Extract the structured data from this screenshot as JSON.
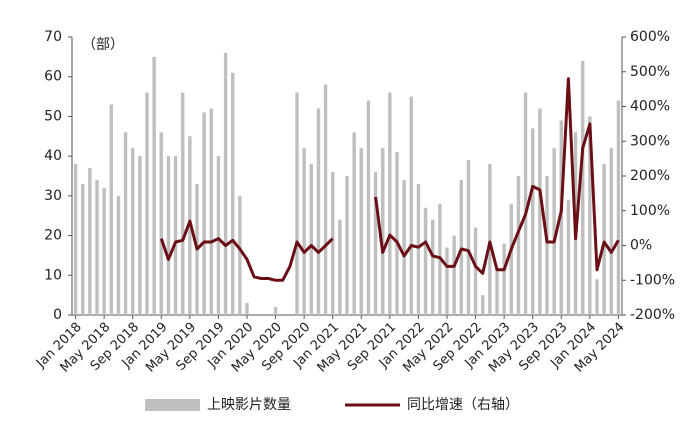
{
  "chart_data": {
    "type": "bar-line",
    "y_unit_label": "（部）",
    "categories": [
      "Jan 2018",
      null,
      null,
      null,
      "May 2018",
      null,
      null,
      null,
      "Sep 2018",
      null,
      null,
      null,
      "Jan 2019",
      null,
      null,
      null,
      "May 2019",
      null,
      null,
      null,
      "Sep 2019",
      null,
      null,
      null,
      "Jan 2020",
      null,
      null,
      null,
      "May 2020",
      null,
      null,
      null,
      "Sep 2020",
      null,
      null,
      null,
      "Jan 2021",
      null,
      null,
      null,
      "May 2021",
      null,
      null,
      null,
      "Sep 2021",
      null,
      null,
      null,
      "Jan 2022",
      null,
      null,
      null,
      "May 2022",
      null,
      null,
      null,
      "Sep 2022",
      null,
      null,
      null,
      "Jan 2023",
      null,
      null,
      null,
      "May 2023",
      null,
      null,
      null,
      "Sep 2023",
      null,
      null,
      null,
      "Jan 2024",
      null,
      null,
      null,
      "May 2024"
    ],
    "series": [
      {
        "name": "上映影片数量",
        "color": "#bfbfbf",
        "type": "bar",
        "values": [
          38,
          33,
          37,
          34,
          32,
          53,
          30,
          46,
          42,
          40,
          56,
          65,
          46,
          40,
          40,
          56,
          45,
          33,
          51,
          52,
          40,
          66,
          61,
          30,
          3,
          0,
          0,
          0,
          2,
          0,
          0,
          56,
          42,
          38,
          52,
          58,
          36,
          24,
          35,
          46,
          42,
          54,
          36,
          42,
          56,
          41,
          34,
          55,
          33,
          27,
          24,
          28,
          17,
          20,
          34,
          39,
          22,
          5,
          38,
          12,
          18,
          28,
          35,
          56,
          47,
          52,
          35,
          42,
          49,
          29,
          46,
          64,
          50,
          9,
          38,
          42,
          54
        ]
      },
      {
        "name": "同比增速（右轴）",
        "color": "#6b0f16",
        "type": "line",
        "axis": "y2",
        "values": [
          null,
          null,
          null,
          null,
          null,
          null,
          null,
          null,
          null,
          null,
          null,
          null,
          20,
          -40,
          10,
          15,
          70,
          -10,
          10,
          10,
          20,
          0,
          15,
          -10,
          -40,
          -90,
          -95,
          -95,
          -100,
          -100,
          -60,
          10,
          -20,
          0,
          -20,
          0,
          20,
          null,
          null,
          null,
          null,
          null,
          140,
          -20,
          30,
          10,
          -30,
          0,
          -5,
          10,
          -30,
          -35,
          -60,
          -60,
          -10,
          -15,
          -60,
          -80,
          10,
          -70,
          -70,
          -10,
          40,
          90,
          170,
          160,
          10,
          10,
          100,
          480,
          20,
          280,
          350,
          -70,
          10,
          -20,
          15
        ]
      }
    ],
    "ylim": [
      0,
      70
    ],
    "yticks": [
      0,
      10,
      20,
      30,
      40,
      50,
      60,
      70
    ],
    "y2lim": [
      -200,
      600
    ],
    "y2ticks": [
      {
        "value": -200,
        "label": "-200%"
      },
      {
        "value": -100,
        "label": "-100%"
      },
      {
        "value": 0,
        "label": "0%"
      },
      {
        "value": 100,
        "label": "100%"
      },
      {
        "value": 200,
        "label": "200%"
      },
      {
        "value": 300,
        "label": "300%"
      },
      {
        "value": 400,
        "label": "400%"
      },
      {
        "value": 500,
        "label": "500%"
      },
      {
        "value": 600,
        "label": "600%"
      }
    ],
    "grid": false,
    "legend": "bottom"
  }
}
